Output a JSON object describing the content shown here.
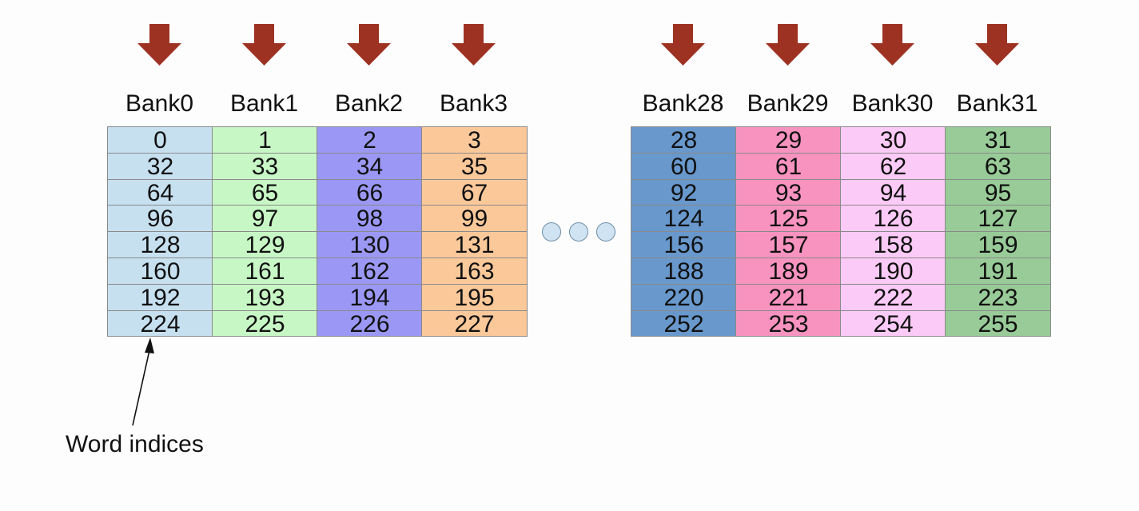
{
  "banks": [
    {
      "label": "Bank0",
      "color": "#c6e0f0",
      "words": [
        "0",
        "32",
        "64",
        "96",
        "128",
        "160",
        "192",
        "224"
      ]
    },
    {
      "label": "Bank1",
      "color": "#c8f7c6",
      "words": [
        "1",
        "33",
        "65",
        "97",
        "129",
        "161",
        "193",
        "225"
      ]
    },
    {
      "label": "Bank2",
      "color": "#9b98f5",
      "words": [
        "2",
        "34",
        "66",
        "98",
        "130",
        "162",
        "194",
        "226"
      ]
    },
    {
      "label": "Bank3",
      "color": "#fbc89a",
      "words": [
        "3",
        "35",
        "67",
        "99",
        "131",
        "163",
        "195",
        "227"
      ]
    },
    {
      "label": "Bank28",
      "color": "#6898cc",
      "words": [
        "28",
        "60",
        "92",
        "124",
        "156",
        "188",
        "220",
        "252"
      ]
    },
    {
      "label": "Bank29",
      "color": "#f893c0",
      "words": [
        "29",
        "61",
        "93",
        "125",
        "157",
        "189",
        "221",
        "253"
      ]
    },
    {
      "label": "Bank30",
      "color": "#fccaf6",
      "words": [
        "30",
        "62",
        "94",
        "126",
        "158",
        "190",
        "222",
        "254"
      ]
    },
    {
      "label": "Bank31",
      "color": "#98cb98",
      "words": [
        "31",
        "63",
        "95",
        "127",
        "159",
        "191",
        "223",
        "255"
      ]
    }
  ],
  "arrow_color": "#9e3222",
  "annotation": {
    "label": "Word indices"
  }
}
